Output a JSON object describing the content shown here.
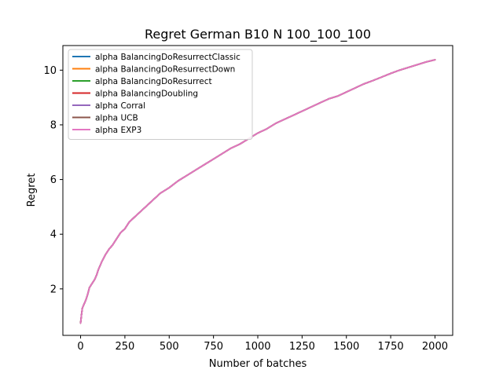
{
  "chart_data": {
    "type": "line",
    "title": "Regret German B10 N 100_100_100",
    "xlabel": "Number of batches",
    "ylabel": "Regret",
    "xlim": [
      -100,
      2100
    ],
    "ylim": [
      0.3,
      10.9
    ],
    "xticks": [
      0,
      250,
      500,
      750,
      1000,
      1250,
      1500,
      1750,
      2000
    ],
    "xtick_labels": [
      "0",
      "250",
      "500",
      "750",
      "1000",
      "1250",
      "1500",
      "1750",
      "2000"
    ],
    "yticks": [
      2,
      4,
      6,
      8,
      10
    ],
    "ytick_labels": [
      "2",
      "4",
      "6",
      "8",
      "10"
    ],
    "grid": false,
    "legend_position": "top-left",
    "x": [
      0,
      5,
      10,
      20,
      30,
      40,
      50,
      60,
      70,
      80,
      90,
      100,
      120,
      140,
      160,
      180,
      200,
      225,
      250,
      275,
      300,
      350,
      400,
      450,
      500,
      550,
      600,
      650,
      700,
      750,
      800,
      850,
      900,
      950,
      1000,
      1050,
      1100,
      1150,
      1200,
      1250,
      1300,
      1350,
      1400,
      1450,
      1500,
      1550,
      1600,
      1650,
      1700,
      1750,
      1800,
      1850,
      1900,
      1950,
      2000
    ],
    "series": [
      {
        "name": "alpha BalancingDoResurrectClassic",
        "color": "#1f77b4",
        "values": [
          0.75,
          1.05,
          1.3,
          1.45,
          1.6,
          1.8,
          2.05,
          2.15,
          2.25,
          2.35,
          2.5,
          2.7,
          3.0,
          3.25,
          3.45,
          3.6,
          3.8,
          4.05,
          4.2,
          4.45,
          4.6,
          4.9,
          5.2,
          5.5,
          5.7,
          5.95,
          6.15,
          6.35,
          6.55,
          6.75,
          6.95,
          7.15,
          7.3,
          7.5,
          7.7,
          7.85,
          8.05,
          8.2,
          8.35,
          8.5,
          8.65,
          8.8,
          8.95,
          9.05,
          9.2,
          9.35,
          9.5,
          9.62,
          9.75,
          9.88,
          10.0,
          10.1,
          10.2,
          10.3,
          10.38
        ]
      },
      {
        "name": "alpha BalancingDoResurrectDown",
        "color": "#ff7f0e",
        "values": [
          0.75,
          1.05,
          1.3,
          1.45,
          1.6,
          1.8,
          2.05,
          2.15,
          2.25,
          2.35,
          2.5,
          2.7,
          3.0,
          3.25,
          3.45,
          3.6,
          3.8,
          4.05,
          4.2,
          4.45,
          4.6,
          4.9,
          5.2,
          5.5,
          5.7,
          5.95,
          6.15,
          6.35,
          6.55,
          6.75,
          6.95,
          7.15,
          7.3,
          7.5,
          7.7,
          7.85,
          8.05,
          8.2,
          8.35,
          8.5,
          8.65,
          8.8,
          8.95,
          9.05,
          9.2,
          9.35,
          9.5,
          9.62,
          9.75,
          9.88,
          10.0,
          10.1,
          10.2,
          10.3,
          10.38
        ]
      },
      {
        "name": "alpha BalancingDoResurrect",
        "color": "#2ca02c",
        "values": [
          0.75,
          1.05,
          1.3,
          1.45,
          1.6,
          1.8,
          2.05,
          2.15,
          2.25,
          2.35,
          2.5,
          2.7,
          3.0,
          3.25,
          3.45,
          3.6,
          3.8,
          4.05,
          4.2,
          4.45,
          4.6,
          4.9,
          5.2,
          5.5,
          5.7,
          5.95,
          6.15,
          6.35,
          6.55,
          6.75,
          6.95,
          7.15,
          7.3,
          7.5,
          7.7,
          7.85,
          8.05,
          8.2,
          8.35,
          8.5,
          8.65,
          8.8,
          8.95,
          9.05,
          9.2,
          9.35,
          9.5,
          9.62,
          9.75,
          9.88,
          10.0,
          10.1,
          10.2,
          10.3,
          10.38
        ]
      },
      {
        "name": "alpha BalancingDoubling",
        "color": "#d62728",
        "values": [
          0.75,
          1.05,
          1.3,
          1.45,
          1.6,
          1.8,
          2.05,
          2.15,
          2.25,
          2.35,
          2.5,
          2.7,
          3.0,
          3.25,
          3.45,
          3.6,
          3.8,
          4.05,
          4.2,
          4.45,
          4.6,
          4.9,
          5.2,
          5.5,
          5.7,
          5.95,
          6.15,
          6.35,
          6.55,
          6.75,
          6.95,
          7.15,
          7.3,
          7.5,
          7.7,
          7.85,
          8.05,
          8.2,
          8.35,
          8.5,
          8.65,
          8.8,
          8.95,
          9.05,
          9.2,
          9.35,
          9.5,
          9.62,
          9.75,
          9.88,
          10.0,
          10.1,
          10.2,
          10.3,
          10.38
        ]
      },
      {
        "name": "alpha Corral",
        "color": "#9467bd",
        "values": [
          0.75,
          1.05,
          1.3,
          1.45,
          1.6,
          1.8,
          2.05,
          2.15,
          2.25,
          2.35,
          2.5,
          2.7,
          3.0,
          3.25,
          3.45,
          3.6,
          3.8,
          4.05,
          4.2,
          4.45,
          4.6,
          4.9,
          5.2,
          5.5,
          5.7,
          5.95,
          6.15,
          6.35,
          6.55,
          6.75,
          6.95,
          7.15,
          7.3,
          7.5,
          7.7,
          7.85,
          8.05,
          8.2,
          8.35,
          8.5,
          8.65,
          8.8,
          8.95,
          9.05,
          9.2,
          9.35,
          9.5,
          9.62,
          9.75,
          9.88,
          10.0,
          10.1,
          10.2,
          10.3,
          10.38
        ]
      },
      {
        "name": "alpha UCB",
        "color": "#8c564b",
        "values": [
          0.75,
          1.05,
          1.3,
          1.45,
          1.6,
          1.8,
          2.05,
          2.15,
          2.25,
          2.35,
          2.5,
          2.7,
          3.0,
          3.25,
          3.45,
          3.6,
          3.8,
          4.05,
          4.2,
          4.45,
          4.6,
          4.9,
          5.2,
          5.5,
          5.7,
          5.95,
          6.15,
          6.35,
          6.55,
          6.75,
          6.95,
          7.15,
          7.3,
          7.5,
          7.7,
          7.85,
          8.05,
          8.2,
          8.35,
          8.5,
          8.65,
          8.8,
          8.95,
          9.05,
          9.2,
          9.35,
          9.5,
          9.62,
          9.75,
          9.88,
          10.0,
          10.1,
          10.2,
          10.3,
          10.38
        ]
      },
      {
        "name": "alpha EXP3",
        "color": "#e377c2",
        "values": [
          0.75,
          1.05,
          1.3,
          1.45,
          1.6,
          1.8,
          2.05,
          2.15,
          2.25,
          2.35,
          2.5,
          2.7,
          3.0,
          3.25,
          3.45,
          3.6,
          3.8,
          4.05,
          4.2,
          4.45,
          4.6,
          4.9,
          5.2,
          5.5,
          5.7,
          5.95,
          6.15,
          6.35,
          6.55,
          6.75,
          6.95,
          7.15,
          7.3,
          7.5,
          7.7,
          7.85,
          8.05,
          8.2,
          8.35,
          8.5,
          8.65,
          8.8,
          8.95,
          9.05,
          9.2,
          9.35,
          9.5,
          9.62,
          9.75,
          9.88,
          10.0,
          10.1,
          10.2,
          10.3,
          10.38
        ]
      }
    ]
  }
}
